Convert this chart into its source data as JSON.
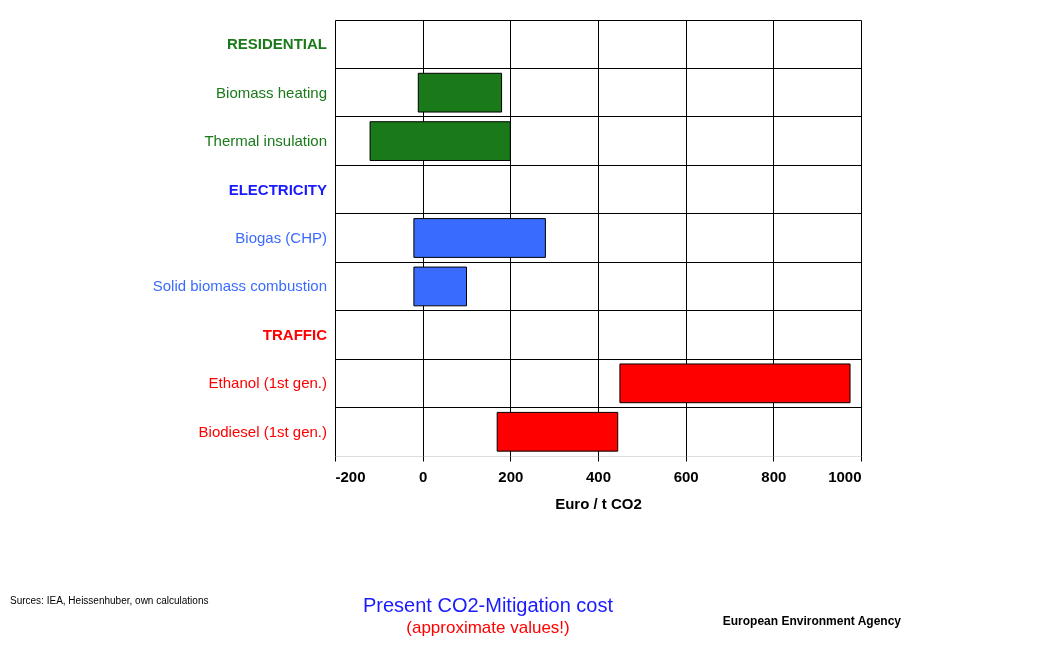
{
  "chart_data": {
    "type": "bar",
    "orientation": "horizontal",
    "title": "Present CO2-Mitigation cost",
    "subtitle": "(approximate values!)",
    "xlabel": "Euro / t CO2",
    "categories": [
      "RESIDENTIAL",
      "Biomass heating",
      "Thermal insulation",
      "ELECTRICITY",
      "Biogas (CHP)",
      "Solid biomass combustion",
      "TRAFFIC",
      "Ethanol (1st gen.)",
      "Biodiesel (1st gen.)"
    ],
    "base": [
      null,
      -10,
      -120,
      null,
      -20,
      -20,
      null,
      450,
      170
    ],
    "values": [
      null,
      190,
      320,
      null,
      300,
      120,
      null,
      525,
      275
    ],
    "colors": [
      "#1a7a1a",
      "#1a7a1a",
      "#1a7a1a",
      "#1a1aff",
      "#3a6bff",
      "#3a6bff",
      "#ff0000",
      "#ff0000",
      "#ff0000"
    ],
    "xlim": [
      -200,
      1000
    ],
    "xticks": [
      -200,
      0,
      200,
      400,
      600,
      800,
      1000
    ],
    "grid": true,
    "annotations": [
      "Surces: IEA, Heissenhuber, own calculations",
      "European Environment Agency"
    ]
  }
}
